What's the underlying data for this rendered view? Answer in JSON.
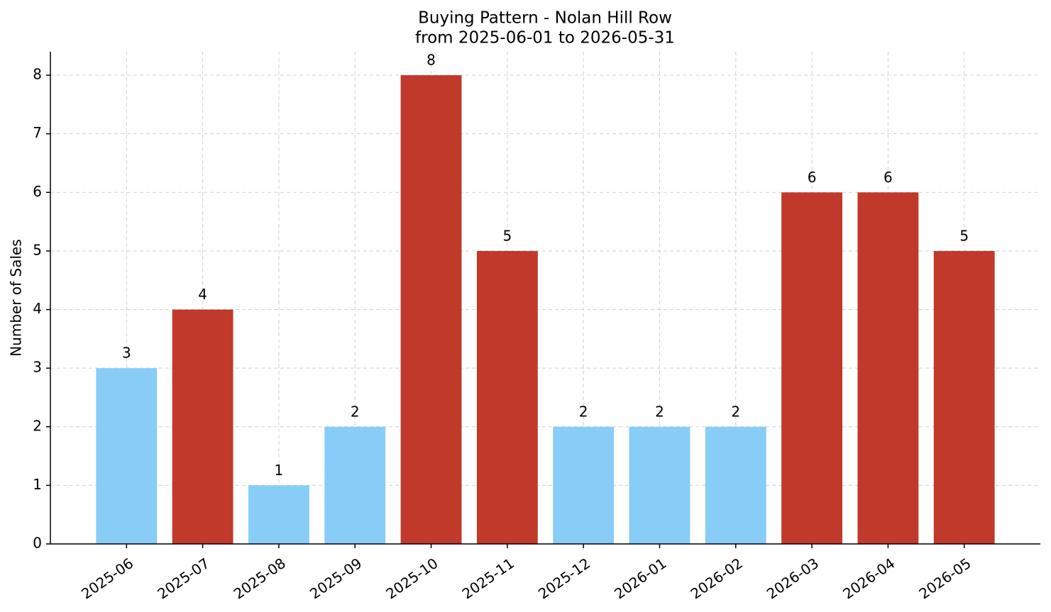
{
  "chart_data": {
    "type": "bar",
    "title": "Buying Pattern - Nolan Hill Row",
    "subtitle": "from 2025-06-01 to 2026-05-31",
    "y_label": "Number of Sales",
    "categories": [
      "2025-06",
      "2025-07",
      "2025-08",
      "2025-09",
      "2025-10",
      "2025-11",
      "2025-12",
      "2026-01",
      "2026-02",
      "2026-03",
      "2026-04",
      "2026-05"
    ],
    "values": [
      3,
      4,
      1,
      2,
      8,
      5,
      2,
      2,
      2,
      6,
      6,
      5
    ],
    "colors": [
      "#87cdf7",
      "#c0392b",
      "#87cdf7",
      "#87cdf7",
      "#c0392b",
      "#c0392b",
      "#87cdf7",
      "#87cdf7",
      "#87cdf7",
      "#c0392b",
      "#c0392b",
      "#c0392b"
    ],
    "ylim": [
      0,
      8.4
    ],
    "yticks": [
      0,
      1,
      2,
      3,
      4,
      5,
      6,
      7,
      8
    ],
    "grid": true
  }
}
